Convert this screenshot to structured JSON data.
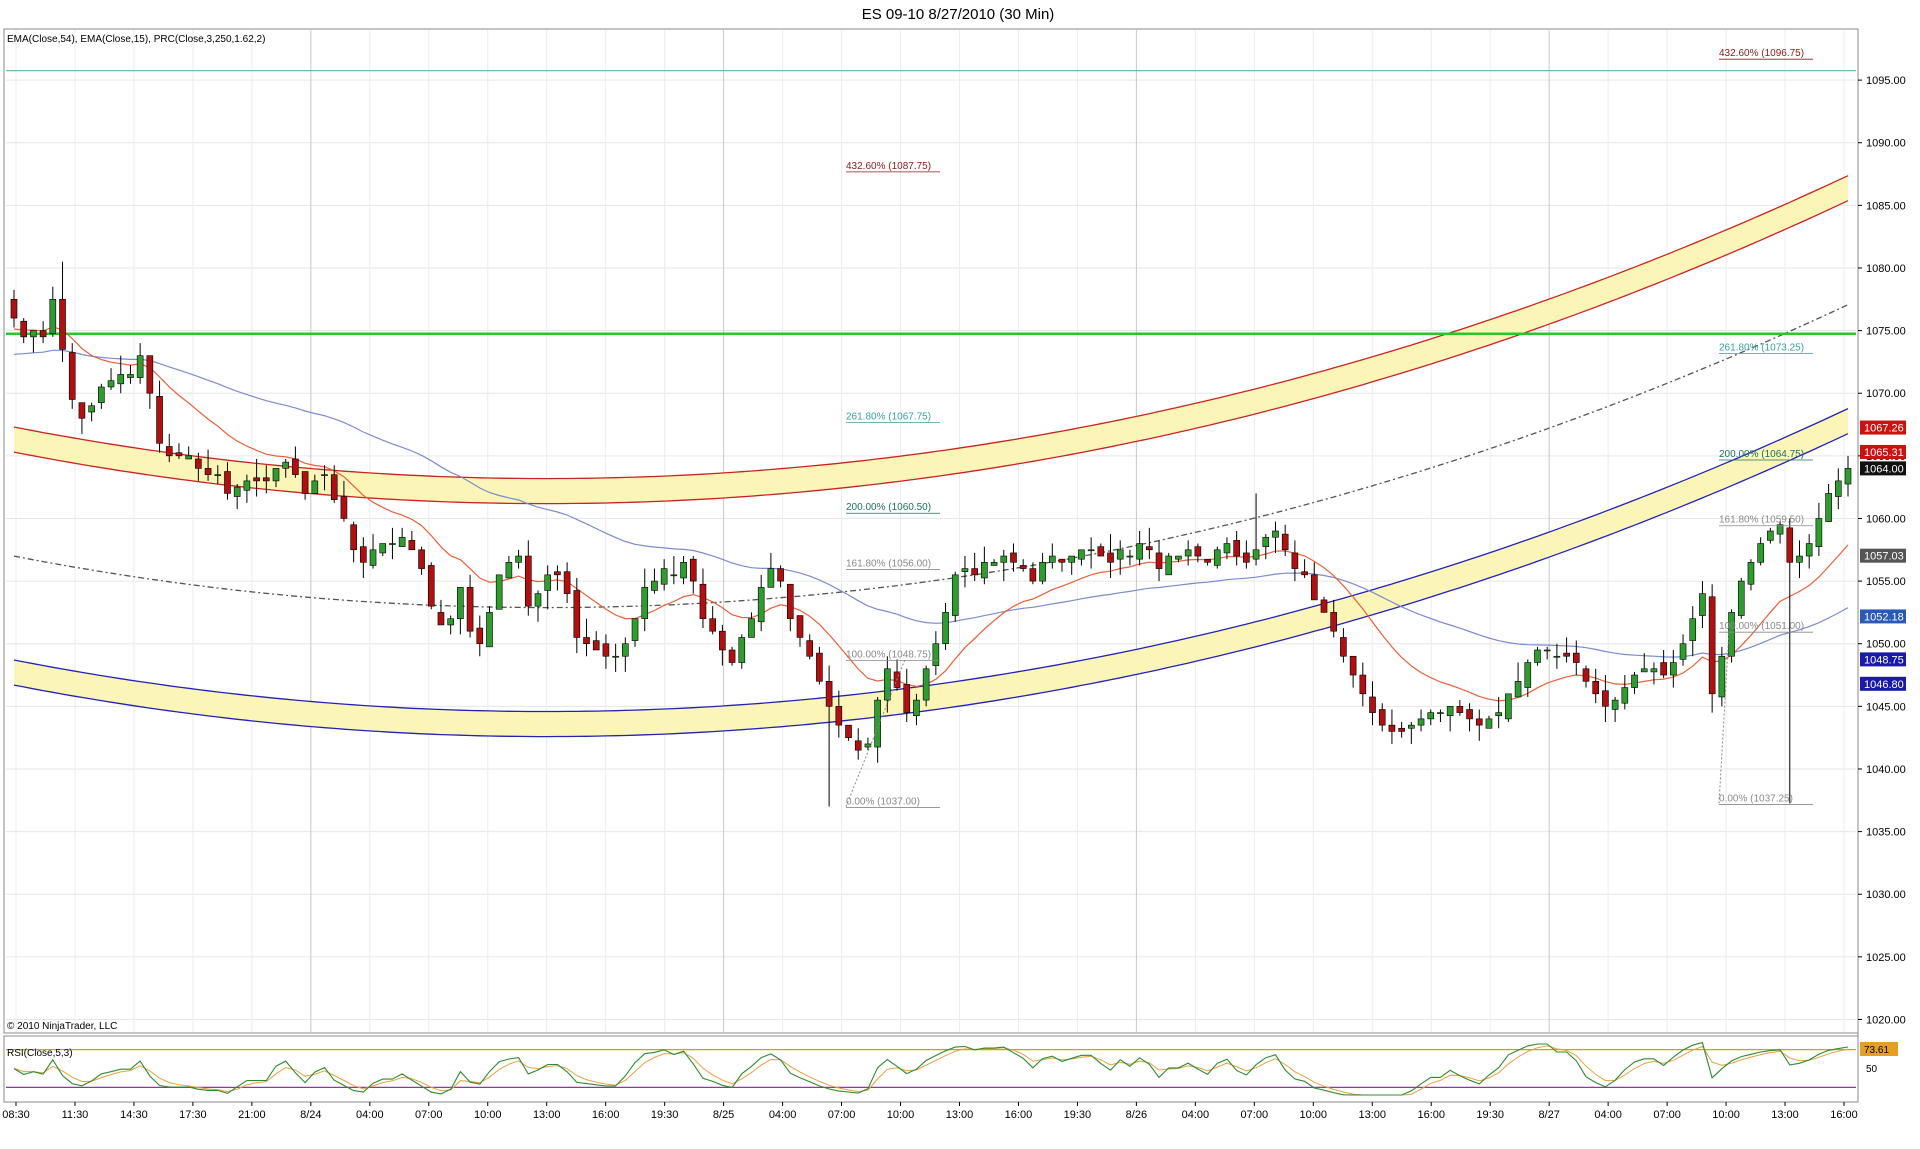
{
  "window": {
    "title": "ES 09-10  8/27/2010 (30 Min)"
  },
  "panels": {
    "price": {
      "indicator_label": "EMA(Close,54), EMA(Close,15), PRC(Close,3,250,1.62,2)",
      "copyright": "© 2010 NinjaTrader, LLC"
    },
    "rsi": {
      "indicator_label": "RSI(Close,5,3)",
      "level_label": "50",
      "value_badge": "73.61"
    }
  },
  "colors": {
    "up_candle": "#2e9c2e",
    "down_candle": "#b01010",
    "ema15": "#e8603a",
    "ema54": "#7a8cd0",
    "prc_mid": "#555555",
    "upper_band": "#cc2222",
    "lower_band": "#2222bb",
    "band_fill": "#fbf5b8",
    "green_line": "#22cc22",
    "top_cyan_line": "#5ab4b4",
    "rsi_line": "#2e8b2e",
    "rsi_signal": "#e8a040",
    "rsi_upper": "#b4b400",
    "rsi_lower": "#8a3a9a"
  },
  "chart_data": {
    "type": "candlestick",
    "symbol": "ES 09-10",
    "interval": "30 Min",
    "x_tick_labels": [
      "08:30",
      "11:30",
      "14:30",
      "17:30",
      "21:00",
      "8/24",
      "04:00",
      "07:00",
      "10:00",
      "13:00",
      "16:00",
      "19:30",
      "8/25",
      "04:00",
      "07:00",
      "10:00",
      "13:00",
      "16:00",
      "19:30",
      "8/26",
      "04:00",
      "07:00",
      "10:00",
      "13:00",
      "16:00",
      "19:30",
      "8/27",
      "04:00",
      "07:00",
      "10:00",
      "13:00",
      "16:00"
    ],
    "y_ticks": [
      "1095.00",
      "1090.00",
      "1085.00",
      "1080.00",
      "1075.00",
      "1070.00",
      "1065.00",
      "1060.00",
      "1055.00",
      "1050.00",
      "1045.00",
      "1040.00",
      "1035.00",
      "1030.00",
      "1025.00",
      "1020.00"
    ],
    "ylim": [
      1019,
      1099
    ],
    "horizontal_lines": [
      {
        "name": "green line",
        "value": 1074.75
      },
      {
        "name": "top cyan line",
        "value": 1095.75
      }
    ],
    "price_badges": [
      "1067.26",
      "1065.31",
      "1064.00",
      "1057.03",
      "1052.18",
      "1048.75",
      "1046.80"
    ],
    "fib_labels": [
      {
        "text": "432.60% (1087.75)",
        "value": 1087.75
      },
      {
        "text": "261.80% (1067.75)",
        "value": 1067.75
      },
      {
        "text": "200.00% (1060.50)",
        "value": 1060.5
      },
      {
        "text": "161.80% (1056.00)",
        "value": 1056.0
      },
      {
        "text": "100.00% (1048.75)",
        "value": 1048.75
      },
      {
        "text": "0.00% (1037.00)",
        "value": 1037.0
      },
      {
        "text": "432.60% (1096.75)",
        "value": 1096.75
      },
      {
        "text": "261.80% (1073.25)",
        "value": 1073.25
      },
      {
        "text": "200.00% (1064.75)",
        "value": 1064.75
      },
      {
        "text": "161.80% (1059.50)",
        "value": 1059.5
      },
      {
        "text": "100.00% (1051.00)",
        "value": 1051.0
      },
      {
        "text": "0.00% (1037.25)",
        "value": 1037.25
      }
    ],
    "closes": [
      1076.0,
      1074.5,
      1075.0,
      1074.5,
      1077.5,
      1073.5,
      1069.5,
      1068.0,
      1069.0,
      1070.5,
      1071.0,
      1071.5,
      1071.5,
      1073.0,
      1070.0,
      1066.0,
      1065.0,
      1065.0,
      1065.0,
      1064.0,
      1063.5,
      1063.5,
      1062.0,
      1062.5,
      1063.0,
      1063.0,
      1063.0,
      1064.0,
      1064.5,
      1063.5,
      1062.0,
      1063.0,
      1063.5,
      1061.5,
      1060.0,
      1057.5,
      1056.5,
      1057.5,
      1058.0,
      1058.0,
      1058.5,
      1057.5,
      1056.0,
      1053.0,
      1051.5,
      1052.0,
      1054.5,
      1051.0,
      1050.0,
      1052.5,
      1055.5,
      1056.5,
      1057.0,
      1053.0,
      1054.0,
      1055.5,
      1055.5,
      1054.0,
      1050.5,
      1050.0,
      1049.5,
      1049.0,
      1049.0,
      1050.0,
      1052.0,
      1054.5,
      1055.0,
      1056.0,
      1055.5,
      1056.5,
      1055.0,
      1052.0,
      1051.0,
      1049.5,
      1048.5,
      1050.5,
      1052.0,
      1054.5,
      1056.0,
      1055.0,
      1052.0,
      1050.5,
      1049.0,
      1047.0,
      1045.0,
      1043.5,
      1042.5,
      1041.5,
      1042.0,
      1045.5,
      1048.0,
      1046.5,
      1044.5,
      1045.5,
      1048.0,
      1050.0,
      1052.5,
      1055.5,
      1056.0,
      1055.5,
      1056.5,
      1056.5,
      1057.0,
      1056.5,
      1056.0,
      1055.0,
      1056.5,
      1057.0,
      1056.5,
      1057.0,
      1057.5,
      1057.5,
      1057.0,
      1056.5,
      1057.5,
      1057.0,
      1058.0,
      1057.5,
      1056.0,
      1057.0,
      1057.0,
      1057.5,
      1057.0,
      1056.5,
      1057.5,
      1058.0,
      1057.0,
      1056.5,
      1057.5,
      1058.5,
      1059.0,
      1057.5,
      1056.0,
      1055.5,
      1053.5,
      1052.5,
      1051.0,
      1049.0,
      1047.5,
      1046.0,
      1044.5,
      1043.5,
      1043.0,
      1043.0,
      1043.5,
      1044.0,
      1044.5,
      1044.5,
      1045.0,
      1044.5,
      1044.0,
      1043.5,
      1044.0,
      1044.5,
      1046.0,
      1047.0,
      1048.5,
      1049.5,
      1049.5,
      1049.0,
      1049.0,
      1048.5,
      1047.0,
      1046.0,
      1045.0,
      1045.5,
      1046.5,
      1047.5,
      1048.0,
      1048.0,
      1047.5,
      1048.5,
      1050.0,
      1052.0,
      1054.0,
      1046.0,
      1049.0,
      1052.5,
      1055.0,
      1056.5,
      1058.0,
      1059.0,
      1059.5,
      1056.5,
      1057.0,
      1058.0,
      1060.0,
      1062.0,
      1063.0,
      1064.0
    ]
  }
}
